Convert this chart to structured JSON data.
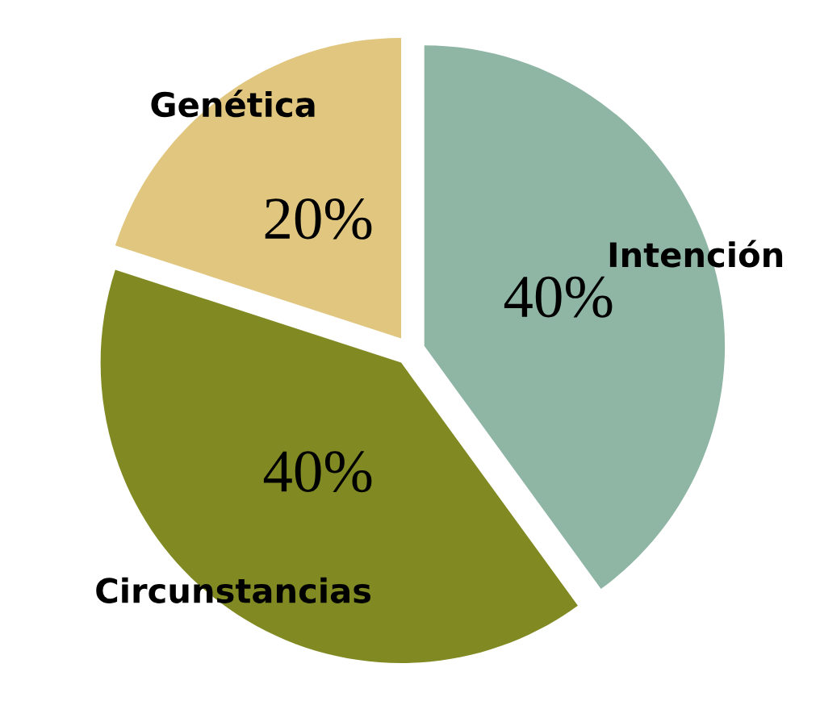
{
  "chart_data": {
    "type": "pie",
    "categories": [
      "Intención",
      "Circunstancias",
      "Genética"
    ],
    "values": [
      40,
      40,
      20
    ],
    "colors": [
      "#8fb5a5",
      "#818a22",
      "#e0c67e"
    ],
    "value_labels": [
      "40%",
      "40%",
      "20%"
    ]
  }
}
